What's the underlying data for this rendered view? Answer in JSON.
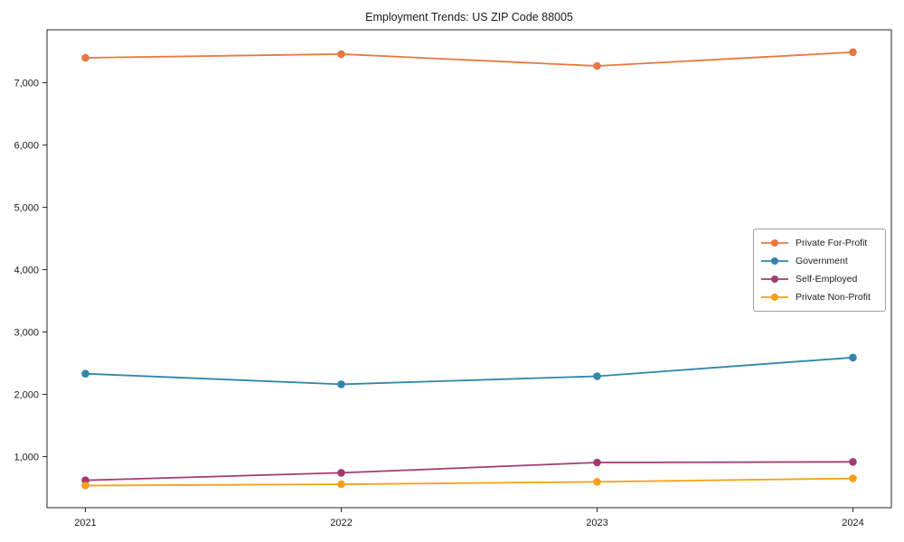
{
  "chart_data": {
    "type": "line",
    "title": "Employment Trends: US ZIP Code 88005",
    "xlabel": "",
    "ylabel": "",
    "x": [
      2021,
      2022,
      2023,
      2024
    ],
    "x_tick_labels": [
      "2021",
      "2022",
      "2023",
      "2024"
    ],
    "y_ticks": [
      1000,
      2000,
      3000,
      4000,
      5000,
      6000,
      7000
    ],
    "y_tick_labels": [
      "1,000",
      "2,000",
      "3,000",
      "4,000",
      "5,000",
      "6,000",
      "7,000"
    ],
    "xlim": [
      2020.85,
      2024.15
    ],
    "ylim": [
      180,
      7850
    ],
    "grid": false,
    "legend_position": "center right",
    "marker": "circle",
    "axis_color": "#262626",
    "series": [
      {
        "name": "Private For-Profit",
        "color": "#E8773E",
        "values": [
          7400,
          7460,
          7270,
          7490
        ]
      },
      {
        "name": "Government",
        "color": "#2E86AB",
        "values": [
          2330,
          2160,
          2290,
          2590
        ]
      },
      {
        "name": "Self-Employed",
        "color": "#A23B72",
        "values": [
          620,
          740,
          905,
          915
        ]
      },
      {
        "name": "Private Non-Profit",
        "color": "#F5A014",
        "values": [
          535,
          555,
          595,
          650
        ]
      }
    ]
  }
}
